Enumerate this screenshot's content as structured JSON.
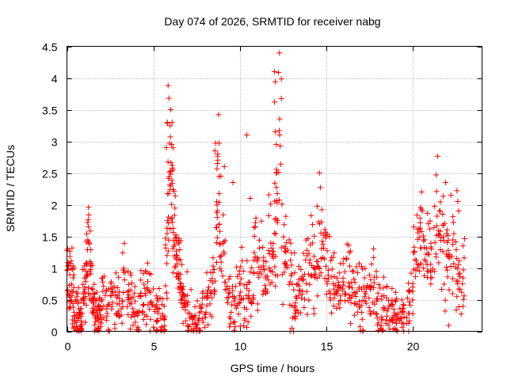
{
  "chart_data": {
    "type": "scatter",
    "title": "Day 074 of 2026, SRMTID for receiver nabg",
    "xlabel": "GPS time / hours",
    "ylabel": "SRMTID / TECUs",
    "xlim": [
      0,
      24
    ],
    "ylim": [
      0,
      4.5
    ],
    "x_ticks": [
      0,
      5,
      10,
      15,
      20
    ],
    "y_ticks": [
      0,
      0.5,
      1,
      1.5,
      2,
      2.5,
      3,
      3.5,
      4,
      4.5
    ],
    "x_tick_labels": [
      "0",
      "5",
      "10",
      "15",
      "20"
    ],
    "y_tick_labels": [
      "0",
      "0.5",
      "1",
      "1.5",
      "2",
      "2.5",
      "3",
      "3.5",
      "4",
      "4.5"
    ],
    "grid": true,
    "marker": "+",
    "color": "#ff0000",
    "series": [
      {
        "name": "SRMTID",
        "x": [
          0.0,
          0.1,
          0.2,
          0.3,
          0.4,
          0.5,
          0.6,
          0.7,
          0.8,
          0.9,
          1.0,
          1.1,
          1.2,
          1.3,
          1.4,
          1.5,
          1.6,
          1.7,
          1.8,
          1.9,
          2.0,
          2.2,
          2.4,
          2.6,
          2.8,
          3.0,
          3.2,
          3.4,
          3.6,
          3.8,
          4.0,
          4.2,
          4.4,
          4.6,
          4.8,
          5.0,
          5.2,
          5.4,
          5.6,
          5.7,
          5.8,
          5.9,
          6.0,
          6.1,
          6.2,
          6.3,
          6.4,
          6.5,
          6.6,
          6.7,
          6.8,
          7.0,
          7.2,
          7.4,
          7.6,
          7.8,
          8.0,
          8.2,
          8.4,
          8.6,
          8.7,
          8.8,
          9.0,
          9.2,
          9.4,
          9.6,
          9.8,
          10.0,
          10.2,
          10.4,
          10.6,
          10.8,
          11.0,
          11.2,
          11.4,
          11.6,
          11.8,
          12.0,
          12.1,
          12.2,
          12.4,
          12.6,
          12.8,
          13.0,
          13.2,
          13.4,
          13.6,
          13.8,
          14.0,
          14.2,
          14.4,
          14.6,
          14.8,
          15.0,
          15.2,
          15.4,
          15.6,
          15.8,
          16.0,
          16.2,
          16.4,
          16.6,
          16.8,
          17.0,
          17.2,
          17.4,
          17.6,
          17.8,
          18.0,
          18.2,
          18.4,
          18.6,
          18.8,
          19.0,
          19.2,
          19.4,
          19.6,
          19.8,
          20.0,
          20.2,
          20.4,
          20.6,
          20.8,
          21.0,
          21.2,
          21.4,
          21.6,
          21.8,
          22.0,
          22.2,
          22.4,
          22.6,
          22.8
        ],
        "y": [
          1.1,
          0.75,
          0.9,
          0.6,
          0.5,
          0.35,
          0.3,
          0.2,
          0.1,
          0.4,
          0.8,
          1.0,
          1.5,
          0.9,
          0.6,
          0.4,
          0.3,
          0.25,
          0.35,
          0.3,
          0.45,
          0.4,
          0.55,
          0.5,
          0.6,
          0.45,
          0.7,
          0.55,
          0.5,
          0.4,
          0.35,
          0.5,
          0.45,
          0.6,
          0.4,
          0.3,
          0.45,
          0.35,
          0.3,
          1.2,
          2.0,
          2.5,
          2.8,
          2.1,
          1.6,
          1.3,
          1.0,
          0.9,
          0.7,
          0.5,
          0.4,
          0.3,
          0.15,
          0.1,
          0.2,
          0.3,
          0.45,
          0.6,
          0.8,
          1.5,
          2.5,
          1.2,
          1.0,
          0.5,
          0.4,
          0.3,
          0.6,
          0.7,
          0.5,
          0.8,
          0.6,
          1.2,
          0.9,
          1.0,
          0.7,
          1.3,
          1.1,
          1.4,
          2.0,
          3.0,
          1.5,
          1.3,
          1.0,
          0.8,
          0.4,
          0.7,
          0.9,
          1.0,
          1.1,
          0.9,
          1.3,
          1.4,
          1.2,
          1.0,
          0.8,
          0.6,
          0.5,
          0.7,
          1.0,
          0.8,
          0.7,
          0.6,
          0.5,
          0.55,
          0.45,
          0.6,
          0.7,
          0.5,
          0.4,
          0.45,
          0.35,
          0.3,
          0.25,
          0.3,
          0.15,
          0.2,
          0.4,
          0.6,
          1.0,
          1.3,
          1.6,
          1.2,
          1.4,
          1.1,
          1.8,
          2.0,
          1.6,
          1.2,
          1.0,
          1.3,
          0.9,
          0.7,
          0.8
        ]
      }
    ],
    "outliers": {
      "x": [
        0.05,
        1.25,
        5.85,
        5.9,
        6.0,
        5.8,
        5.75,
        6.05,
        8.6,
        8.55,
        8.7,
        8.9,
        9.1,
        9.6,
        10.4,
        10.6,
        12.0,
        12.05,
        12.0,
        12.05,
        12.3,
        12.1,
        14.6,
        14.65,
        18.9,
        19.05,
        20.5,
        20.55,
        21.35,
        21.9,
        22.2,
        22.55,
        22.6,
        22.65,
        13.1,
        12.9,
        13.0
      ],
      "y": [
        1.3,
        1.65,
        3.88,
        3.68,
        3.5,
        3.3,
        2.9,
        2.95,
        2.97,
        2.85,
        2.65,
        2.45,
        2.6,
        2.35,
        3.1,
        2.1,
        4.1,
        3.94,
        3.62,
        3.15,
        3.1,
        2.5,
        2.5,
        2.27,
        0.35,
        0.02,
        2.2,
        1.9,
        2.47,
        2.35,
        2.15,
        2.22,
        2.05,
        1.9,
        0.0,
        0.0,
        0.05
      ]
    },
    "noise_seed": 74
  }
}
